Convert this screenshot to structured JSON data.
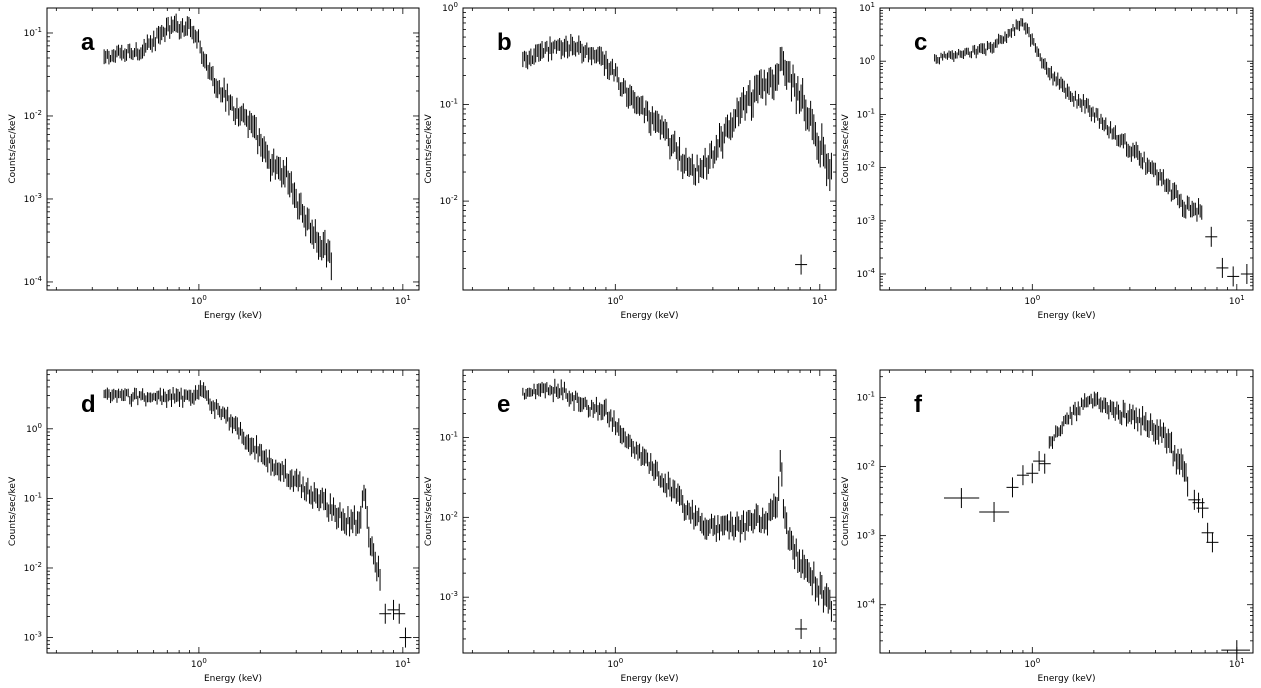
{
  "figure": {
    "xlabel": "Energy (keV)",
    "ylabel": "Counts/sec/keV",
    "xscale": "log",
    "yscale": "log",
    "xlim": [
      0.18,
      12
    ]
  },
  "chart_data": [
    {
      "panel": "a",
      "type": "scatter",
      "title": "",
      "xlabel": "Energy (keV)",
      "ylabel": "Counts/sec/keV",
      "xlim": [
        0.18,
        12
      ],
      "ylim": [
        8e-05,
        0.2
      ],
      "yticks": [
        0.0001,
        0.001,
        0.01,
        0.1
      ],
      "anchors_x": [
        0.34,
        0.4,
        0.5,
        0.6,
        0.7,
        0.8,
        0.9,
        0.95,
        1.0,
        1.05,
        1.15,
        1.3,
        1.5,
        1.7,
        1.9,
        2.1,
        2.3,
        2.5,
        2.7,
        3.1,
        3.7,
        4.5
      ],
      "anchors_y": [
        0.05,
        0.055,
        0.06,
        0.08,
        0.11,
        0.12,
        0.12,
        0.11,
        0.08,
        0.05,
        0.03,
        0.02,
        0.012,
        0.009,
        0.006,
        0.0035,
        0.0025,
        0.002,
        0.002,
        0.0008,
        0.00035,
        0.00018
      ],
      "grid": false
    },
    {
      "panel": "b",
      "type": "scatter",
      "title": "",
      "xlabel": "Energy (keV)",
      "ylabel": "Counts/sec/keV",
      "xlim": [
        0.18,
        12
      ],
      "ylim": [
        0.0012,
        1.0
      ],
      "yticks": [
        0.01,
        0.1,
        1.0
      ],
      "anchors_x": [
        0.35,
        0.45,
        0.55,
        0.7,
        0.9,
        1.1,
        1.4,
        1.8,
        2.2,
        2.6,
        3.0,
        3.6,
        4.3,
        5.0,
        5.6,
        6.2,
        6.5,
        6.8,
        7.2,
        8.0,
        9.0,
        10.0,
        11.5
      ],
      "anchors_y": [
        0.28,
        0.35,
        0.42,
        0.35,
        0.28,
        0.15,
        0.08,
        0.045,
        0.025,
        0.02,
        0.03,
        0.06,
        0.1,
        0.14,
        0.17,
        0.2,
        0.35,
        0.2,
        0.18,
        0.12,
        0.07,
        0.04,
        0.018
      ],
      "extra_points": [
        {
          "x": 8.1,
          "y": 0.0022
        }
      ],
      "grid": false
    },
    {
      "panel": "c",
      "type": "scatter",
      "title": "",
      "xlabel": "Energy (keV)",
      "ylabel": "Counts/sec/keV",
      "xlim": [
        0.18,
        12
      ],
      "ylim": [
        5e-05,
        10
      ],
      "yticks": [
        0.0001,
        0.001,
        0.01,
        0.1,
        1,
        10
      ],
      "anchors_x": [
        0.33,
        0.45,
        0.6,
        0.75,
        0.88,
        0.95,
        1.05,
        1.2,
        1.4,
        1.6,
        1.8,
        2.2,
        2.8,
        3.5,
        4.5,
        5.5,
        6.2,
        6.8
      ],
      "anchors_y": [
        1.1,
        1.35,
        1.7,
        3.0,
        5.0,
        3.8,
        1.5,
        0.6,
        0.32,
        0.2,
        0.15,
        0.07,
        0.03,
        0.013,
        0.005,
        0.002,
        0.0015,
        0.0015
      ],
      "extra_points": [
        {
          "x": 7.5,
          "y": 0.0005
        },
        {
          "x": 8.5,
          "y": 0.00013
        },
        {
          "x": 9.6,
          "y": 9e-05
        },
        {
          "x": 11.2,
          "y": 0.0001
        }
      ],
      "grid": false
    },
    {
      "panel": "d",
      "type": "scatter",
      "title": "",
      "xlabel": "Energy (keV)",
      "ylabel": "Counts/sec/keV",
      "xlim": [
        0.18,
        12
      ],
      "ylim": [
        0.0006,
        7
      ],
      "yticks": [
        0.001,
        0.01,
        0.1,
        1.0
      ],
      "anchors_x": [
        0.34,
        0.5,
        0.7,
        0.9,
        1.05,
        1.2,
        1.5,
        1.8,
        2.2,
        2.8,
        3.5,
        4.5,
        5.5,
        6.2,
        6.45,
        6.7,
        7.1,
        7.8
      ],
      "anchors_y": [
        3.0,
        2.9,
        2.8,
        2.8,
        3.5,
        2.0,
        1.1,
        0.6,
        0.35,
        0.2,
        0.12,
        0.07,
        0.045,
        0.05,
        0.15,
        0.04,
        0.015,
        0.007
      ],
      "extra_points": [
        {
          "x": 8.2,
          "y": 0.0022
        },
        {
          "x": 9.0,
          "y": 0.0025
        },
        {
          "x": 9.6,
          "y": 0.0022
        },
        {
          "x": 10.3,
          "y": 0.001
        }
      ],
      "grid": false
    },
    {
      "panel": "e",
      "type": "scatter",
      "title": "",
      "xlabel": "Energy (keV)",
      "ylabel": "Counts/sec/keV",
      "xlim": [
        0.18,
        12
      ],
      "ylim": [
        0.0002,
        0.7
      ],
      "yticks": [
        0.001,
        0.01,
        0.1
      ],
      "anchors_x": [
        0.35,
        0.45,
        0.55,
        0.7,
        0.9,
        1.1,
        1.4,
        1.8,
        2.2,
        2.8,
        3.5,
        4.5,
        5.5,
        6.2,
        6.45,
        6.7,
        7.2,
        8.0,
        9.5,
        11.5
      ],
      "anchors_y": [
        0.35,
        0.38,
        0.4,
        0.25,
        0.22,
        0.1,
        0.05,
        0.025,
        0.013,
        0.008,
        0.007,
        0.008,
        0.01,
        0.012,
        0.06,
        0.01,
        0.005,
        0.003,
        0.0015,
        0.0008
      ],
      "extra_points": [
        {
          "x": 8.1,
          "y": 0.0004
        }
      ],
      "grid": false
    },
    {
      "panel": "f",
      "type": "scatter",
      "title": "",
      "xlabel": "Energy (keV)",
      "ylabel": "Counts/sec/keV",
      "xlim": [
        0.18,
        12
      ],
      "ylim": [
        2e-05,
        0.25
      ],
      "yticks": [
        0.0001,
        0.001,
        0.01,
        0.1
      ],
      "anchors_x": [
        1.2,
        1.4,
        1.6,
        1.8,
        2.0,
        2.3,
        2.7,
        3.2,
        3.8,
        4.5,
        5.2,
        5.8
      ],
      "anchors_y": [
        0.02,
        0.04,
        0.06,
        0.08,
        0.09,
        0.07,
        0.06,
        0.05,
        0.04,
        0.025,
        0.012,
        0.006
      ],
      "extra_points": [
        {
          "x": 0.45,
          "y": 0.0035,
          "xerr": [
            0.37,
            0.55
          ]
        },
        {
          "x": 0.65,
          "y": 0.0022,
          "xerr": [
            0.55,
            0.77
          ]
        },
        {
          "x": 0.8,
          "y": 0.005
        },
        {
          "x": 0.9,
          "y": 0.0075
        },
        {
          "x": 1.0,
          "y": 0.008
        },
        {
          "x": 1.08,
          "y": 0.012
        },
        {
          "x": 1.15,
          "y": 0.011
        },
        {
          "x": 6.2,
          "y": 0.0033
        },
        {
          "x": 6.5,
          "y": 0.003
        },
        {
          "x": 6.8,
          "y": 0.0025
        },
        {
          "x": 7.2,
          "y": 0.0011
        },
        {
          "x": 7.6,
          "y": 0.0008
        },
        {
          "x": 10.0,
          "y": 2.2e-05,
          "xerr": [
            8.4,
            11.6
          ]
        }
      ],
      "grid": false
    }
  ]
}
